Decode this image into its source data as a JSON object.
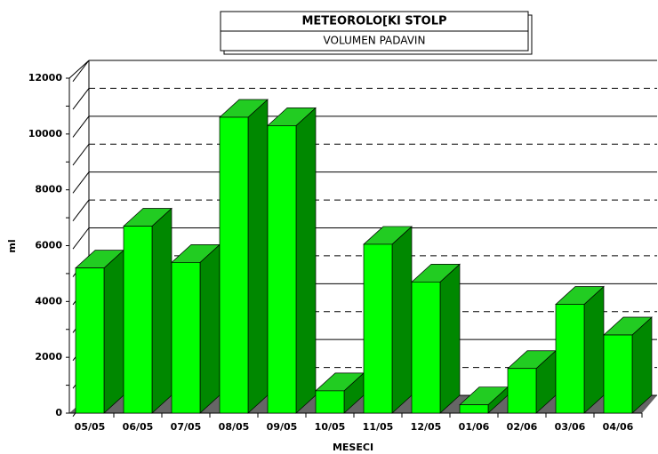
{
  "chart_data": {
    "type": "bar3d",
    "title": "METEOROLO[KI STOLP",
    "subtitle": "VOLUMEN PADAVIN",
    "x_label": "MESECI",
    "y_label": "ml",
    "categories": [
      "05/05",
      "06/05",
      "07/05",
      "08/05",
      "09/05",
      "10/05",
      "11/05",
      "12/05",
      "01/06",
      "02/06",
      "03/06",
      "04/06"
    ],
    "values": [
      5200,
      6700,
      5400,
      10600,
      10300,
      800,
      6050,
      4700,
      300,
      1600,
      3900,
      2800
    ],
    "color": "#00ff00",
    "ylim": [
      0,
      12000
    ],
    "yticks": [
      0,
      2000,
      4000,
      6000,
      8000,
      10000,
      12000
    ],
    "minor_yticks": [
      1000,
      3000,
      5000,
      7000,
      9000,
      11000
    ],
    "grid": true
  }
}
